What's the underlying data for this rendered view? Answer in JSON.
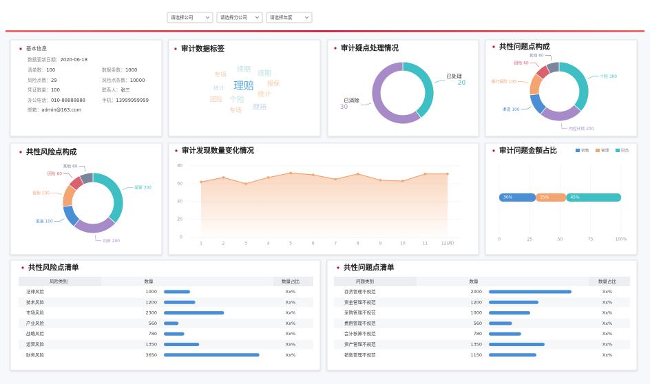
{
  "filters": [
    "请选择公司",
    "请选择分公司",
    "请选择年度"
  ],
  "info": {
    "title": "基本信息",
    "items": [
      {
        "label": "数据更新日期：",
        "value": "2020-06-18"
      },
      {
        "label": "清单数：",
        "value": 100
      },
      {
        "label": "数据条数：",
        "value": 1000
      },
      {
        "label": "风险点数：",
        "value": 29
      },
      {
        "label": "风险点条数：",
        "value": 10000
      },
      {
        "label": "凭证数量：",
        "value": 100
      },
      {
        "label": "联系人：",
        "value": "张三"
      },
      {
        "label": "办公电话：",
        "value": "010-88888888"
      },
      {
        "label": "手机：",
        "value": "13999999999"
      },
      {
        "label": "邮箱：",
        "value": "admin@163.com"
      }
    ]
  },
  "word_cloud": {
    "title": "审计数据标签",
    "words": [
      "专项",
      "续期",
      "续期",
      "统计",
      "理赔",
      "报保",
      "团险",
      "个险",
      "统计",
      "专场",
      "理赔"
    ]
  },
  "chart_data": [
    {
      "type": "pie",
      "title": "审计疑点处理情况",
      "categories": [
        "已处理",
        "已消除"
      ],
      "values": [
        20,
        30
      ],
      "colors": [
        "#3dbfc4",
        "#a78bc9"
      ]
    },
    {
      "type": "pie",
      "title": "共性问题点构成",
      "categories": [
        "个险",
        "内控环境",
        "渠道",
        "银行保险",
        "团险",
        "其他"
      ],
      "values": [
        300,
        200,
        100,
        100,
        60,
        60
      ],
      "colors": [
        "#3dbfc4",
        "#a78bc9",
        "#4a8fd6",
        "#f4a470",
        "#d9626e",
        "#7b869c"
      ]
    },
    {
      "type": "pie",
      "title": "共性风险点构成",
      "categories": [
        "渠保",
        "内务",
        "渠道",
        "银保",
        "团险",
        "其他"
      ],
      "values": [
        300,
        200,
        100,
        100,
        60,
        60
      ],
      "colors": [
        "#3dbfc4",
        "#a78bc9",
        "#4a8fd6",
        "#f4a470",
        "#d9626e",
        "#7b869c"
      ]
    },
    {
      "type": "line",
      "title": "审计发现数量变化情况",
      "categories": [
        "1",
        "2",
        "3",
        "4",
        "5",
        "6",
        "7",
        "8",
        "9",
        "10",
        "11",
        "12(月)"
      ],
      "values": [
        62,
        67,
        60,
        67,
        72,
        70,
        65,
        71,
        64,
        63,
        71,
        71
      ],
      "color": "#f4a470",
      "ylim": [
        0,
        80
      ],
      "yticks": [
        0,
        20,
        40,
        60,
        80
      ],
      "grid": true
    },
    {
      "type": "stacked-bar",
      "title": "审计问题金额占比",
      "series": [
        {
          "name": "销售",
          "color": "#4a8fd6",
          "values": [
            30
          ],
          "value_labels": [
            "30%"
          ]
        },
        {
          "name": "管理",
          "color": "#f4a470",
          "values": [
            25
          ],
          "value_labels": [
            "25%"
          ]
        },
        {
          "name": "财务",
          "color": "#3dbfc4",
          "values": [
            45
          ],
          "value_labels": [
            "45%"
          ]
        }
      ],
      "xlim": [
        0,
        100
      ],
      "xticks": [
        0,
        25,
        50,
        75,
        {
          "value": 100,
          "label": "100%"
        }
      ],
      "grid": true
    }
  ],
  "tables": [
    {
      "title": "共性风险点清单",
      "headers": [
        "风险类别",
        "数量",
        "数量占比"
      ],
      "rows": [
        [
          "法律风险",
          1000,
          "Xx%"
        ],
        [
          "技术风险",
          1200,
          "Xx%"
        ],
        [
          "市场风险",
          2300,
          "Xx%"
        ],
        [
          "产业风险",
          560,
          "Xx%"
        ],
        [
          "战略风险",
          780,
          "Xx%"
        ],
        [
          "运营风险",
          1350,
          "Xx%"
        ],
        [
          "财务风险",
          3650,
          "Xx%"
        ]
      ]
    },
    {
      "title": "共性问题点清单",
      "headers": [
        "问题类别",
        "数量",
        "数量占比"
      ],
      "rows": [
        [
          "存货管理不规范",
          2000,
          "Xx%"
        ],
        [
          "资金管理不规范",
          1200,
          "Xx%"
        ],
        [
          "采购管理不规范",
          1000,
          "Xx%"
        ],
        [
          "费用管理不规范",
          560,
          "Xx%"
        ],
        [
          "会计核算不规范",
          780,
          "Xx%"
        ],
        [
          "资产管理不规范",
          1350,
          "Xx%"
        ],
        [
          "销售管理不规范",
          1150,
          "Xx%"
        ]
      ]
    }
  ]
}
